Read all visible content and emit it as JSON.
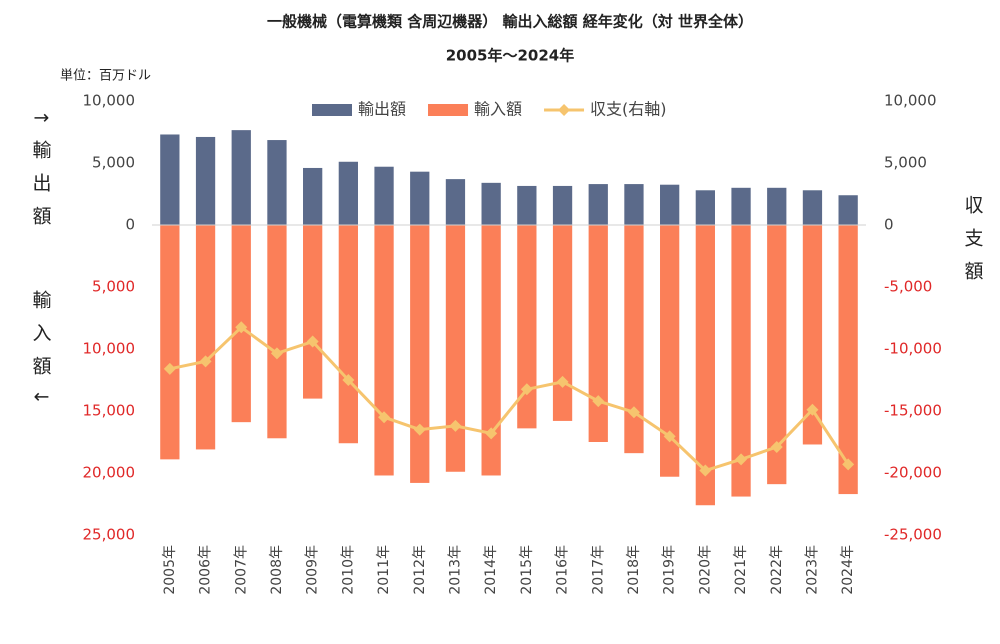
{
  "chart_data": {
    "type": "bar_line",
    "title": "一般機械（電算機類 含周辺機器） 輸出入総額 経年変化（対 世界全体）",
    "subtitle": "2005年～2024年",
    "unit_label": "単位：百万ドル",
    "y_label_top": "↑輸出額",
    "y_label_bottom": "輸入額↓",
    "y2_label": "収支額",
    "categories": [
      "2005年",
      "2006年",
      "2007年",
      "2008年",
      "2009年",
      "2010年",
      "2011年",
      "2012年",
      "2013年",
      "2014年",
      "2015年",
      "2016年",
      "2017年",
      "2018年",
      "2019年",
      "2020年",
      "2021年",
      "2022年",
      "2023年",
      "2024年"
    ],
    "series": [
      {
        "name": "輸出額",
        "color": "#5b6a8a",
        "values": [
          7300,
          7100,
          7650,
          6850,
          4600,
          5100,
          4700,
          4300,
          3700,
          3400,
          3150,
          3150,
          3300,
          3300,
          3250,
          2800,
          3000,
          3000,
          2800,
          2400
        ]
      },
      {
        "name": "輸入額",
        "color": "#fb7f58",
        "values": [
          -18900,
          -18100,
          -15900,
          -17200,
          -14000,
          -17600,
          -20200,
          -20800,
          -19900,
          -20200,
          -16400,
          -15800,
          -17500,
          -18400,
          -20300,
          -22600,
          -21900,
          -20900,
          -17700,
          -21700
        ]
      },
      {
        "name": "収支(右軸)",
        "color": "#f6c46e",
        "axis": "y2",
        "type": "line",
        "values": [
          -11600,
          -11000,
          -8250,
          -10350,
          -9400,
          -12500,
          -15500,
          -16500,
          -16200,
          -16800,
          -13250,
          -12650,
          -14200,
          -15100,
          -17050,
          -19800,
          -18900,
          -17900,
          -14900,
          -19300
        ]
      }
    ],
    "ylim": [
      -25000,
      10000
    ],
    "yticks": [
      {
        "value": 10000,
        "label": "10,000"
      },
      {
        "value": 5000,
        "label": "5,000"
      },
      0,
      {
        "value": -5000,
        "label": "5,000"
      },
      {
        "value": -10000,
        "label": "10,000"
      },
      {
        "value": -15000,
        "label": "15,000"
      },
      {
        "value": -20000,
        "label": "20,000"
      },
      {
        "value": -25000,
        "label": "25,000"
      }
    ],
    "y2lim": [
      -25000,
      10000
    ],
    "y2ticks": [
      {
        "value": 10000,
        "label": "10,000"
      },
      {
        "value": 5000,
        "label": "5,000"
      },
      0,
      {
        "value": -5000,
        "label": "-5,000"
      },
      {
        "value": -10000,
        "label": "-10,000"
      },
      {
        "value": -15000,
        "label": "-15,000"
      },
      {
        "value": -20000,
        "label": "-20,000"
      },
      {
        "value": -25000,
        "label": "-25,000"
      }
    ],
    "negative_tick_color": "#e02828",
    "legend": "top"
  }
}
